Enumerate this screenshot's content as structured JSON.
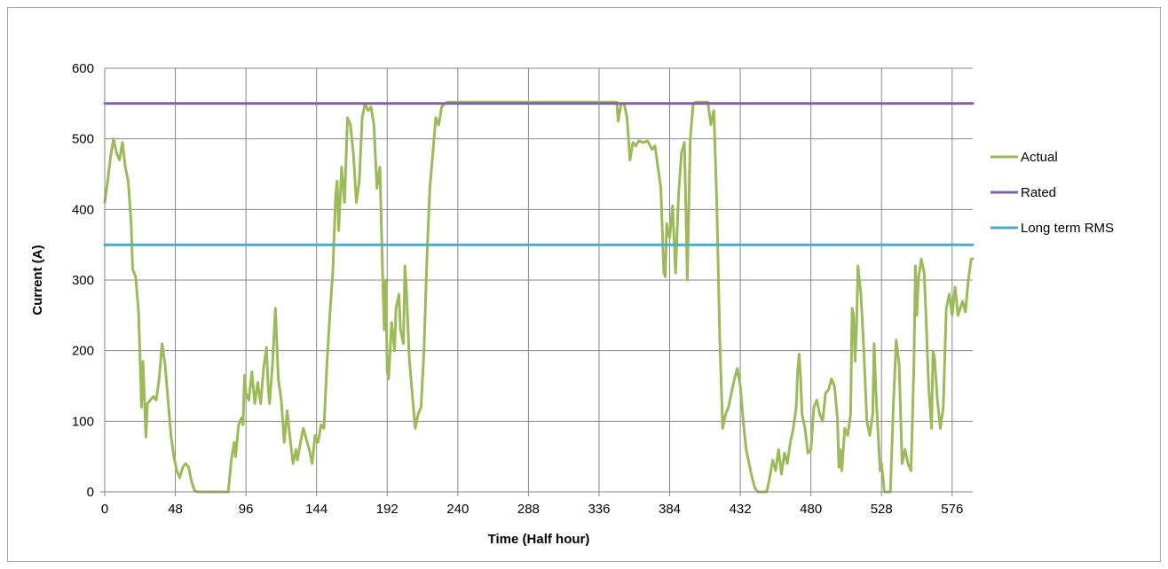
{
  "chart_data": {
    "type": "line",
    "xlabel": "Time (Half hour)",
    "ylabel": "Current (A)",
    "xlim": [
      0,
      590
    ],
    "ylim": [
      0,
      600
    ],
    "x_ticks": [
      0,
      48,
      96,
      144,
      192,
      240,
      288,
      336,
      384,
      432,
      480,
      528,
      576
    ],
    "y_ticks": [
      0,
      100,
      200,
      300,
      400,
      500,
      600
    ],
    "grid": true,
    "legend_position": "right",
    "series": [
      {
        "name": "Actual",
        "color": "#9bbb59",
        "points": [
          [
            0,
            410
          ],
          [
            2,
            440
          ],
          [
            4,
            475
          ],
          [
            6,
            500
          ],
          [
            8,
            480
          ],
          [
            10,
            470
          ],
          [
            12,
            495
          ],
          [
            14,
            460
          ],
          [
            16,
            440
          ],
          [
            18,
            380
          ],
          [
            19,
            315
          ],
          [
            21,
            305
          ],
          [
            23,
            255
          ],
          [
            24,
            190
          ],
          [
            25,
            120
          ],
          [
            26,
            185
          ],
          [
            27,
            130
          ],
          [
            28,
            78
          ],
          [
            29,
            125
          ],
          [
            31,
            130
          ],
          [
            33,
            135
          ],
          [
            35,
            130
          ],
          [
            37,
            160
          ],
          [
            39,
            210
          ],
          [
            41,
            180
          ],
          [
            43,
            130
          ],
          [
            45,
            80
          ],
          [
            47,
            50
          ],
          [
            49,
            30
          ],
          [
            51,
            20
          ],
          [
            53,
            35
          ],
          [
            55,
            40
          ],
          [
            57,
            35
          ],
          [
            59,
            15
          ],
          [
            61,
            2
          ],
          [
            63,
            0
          ],
          [
            70,
            0
          ],
          [
            78,
            0
          ],
          [
            84,
            0
          ],
          [
            86,
            45
          ],
          [
            88,
            70
          ],
          [
            89,
            50
          ],
          [
            91,
            95
          ],
          [
            93,
            105
          ],
          [
            94,
            95
          ],
          [
            95,
            165
          ],
          [
            96,
            140
          ],
          [
            98,
            130
          ],
          [
            100,
            170
          ],
          [
            102,
            125
          ],
          [
            104,
            155
          ],
          [
            106,
            125
          ],
          [
            108,
            175
          ],
          [
            110,
            205
          ],
          [
            111,
            150
          ],
          [
            112,
            125
          ],
          [
            114,
            180
          ],
          [
            116,
            260
          ],
          [
            118,
            160
          ],
          [
            120,
            130
          ],
          [
            121,
            100
          ],
          [
            122,
            70
          ],
          [
            124,
            115
          ],
          [
            126,
            75
          ],
          [
            128,
            40
          ],
          [
            130,
            60
          ],
          [
            131,
            45
          ],
          [
            133,
            70
          ],
          [
            135,
            90
          ],
          [
            137,
            75
          ],
          [
            139,
            60
          ],
          [
            141,
            40
          ],
          [
            143,
            80
          ],
          [
            145,
            70
          ],
          [
            147,
            95
          ],
          [
            149,
            90
          ],
          [
            151,
            180
          ],
          [
            153,
            250
          ],
          [
            155,
            310
          ],
          [
            157,
            420
          ],
          [
            158,
            440
          ],
          [
            159,
            370
          ],
          [
            161,
            460
          ],
          [
            163,
            410
          ],
          [
            165,
            530
          ],
          [
            167,
            520
          ],
          [
            169,
            480
          ],
          [
            171,
            410
          ],
          [
            173,
            440
          ],
          [
            175,
            530
          ],
          [
            177,
            550
          ],
          [
            179,
            540
          ],
          [
            181,
            545
          ],
          [
            183,
            520
          ],
          [
            185,
            430
          ],
          [
            187,
            460
          ],
          [
            189,
            300
          ],
          [
            190,
            230
          ],
          [
            191,
            300
          ],
          [
            192,
            170
          ],
          [
            193,
            160
          ],
          [
            195,
            240
          ],
          [
            197,
            200
          ],
          [
            198,
            260
          ],
          [
            200,
            280
          ],
          [
            201,
            230
          ],
          [
            203,
            210
          ],
          [
            204,
            320
          ],
          [
            205,
            290
          ],
          [
            207,
            190
          ],
          [
            209,
            140
          ],
          [
            211,
            90
          ],
          [
            213,
            110
          ],
          [
            215,
            120
          ],
          [
            217,
            200
          ],
          [
            219,
            330
          ],
          [
            221,
            430
          ],
          [
            223,
            480
          ],
          [
            225,
            530
          ],
          [
            227,
            520
          ],
          [
            229,
            545
          ],
          [
            231,
            550
          ],
          [
            233,
            552
          ],
          [
            240,
            552
          ],
          [
            260,
            552
          ],
          [
            288,
            552
          ],
          [
            320,
            552
          ],
          [
            345,
            552
          ],
          [
            348,
            552
          ],
          [
            349,
            525
          ],
          [
            351,
            550
          ],
          [
            353,
            550
          ],
          [
            355,
            530
          ],
          [
            357,
            470
          ],
          [
            359,
            495
          ],
          [
            361,
            490
          ],
          [
            363,
            497
          ],
          [
            366,
            495
          ],
          [
            369,
            497
          ],
          [
            372,
            485
          ],
          [
            374,
            490
          ],
          [
            376,
            460
          ],
          [
            378,
            430
          ],
          [
            380,
            310
          ],
          [
            381,
            305
          ],
          [
            382,
            380
          ],
          [
            384,
            360
          ],
          [
            386,
            405
          ],
          [
            388,
            310
          ],
          [
            390,
            420
          ],
          [
            392,
            480
          ],
          [
            394,
            495
          ],
          [
            395,
            400
          ],
          [
            396,
            300
          ],
          [
            398,
            500
          ],
          [
            400,
            550
          ],
          [
            402,
            552
          ],
          [
            406,
            552
          ],
          [
            410,
            552
          ],
          [
            412,
            520
          ],
          [
            414,
            540
          ],
          [
            416,
            410
          ],
          [
            418,
            220
          ],
          [
            420,
            90
          ],
          [
            422,
            110
          ],
          [
            424,
            120
          ],
          [
            426,
            140
          ],
          [
            428,
            160
          ],
          [
            430,
            175
          ],
          [
            432,
            150
          ],
          [
            434,
            100
          ],
          [
            436,
            60
          ],
          [
            438,
            40
          ],
          [
            440,
            20
          ],
          [
            442,
            5
          ],
          [
            444,
            0
          ],
          [
            450,
            0
          ],
          [
            452,
            20
          ],
          [
            454,
            45
          ],
          [
            456,
            30
          ],
          [
            458,
            60
          ],
          [
            460,
            25
          ],
          [
            462,
            55
          ],
          [
            464,
            40
          ],
          [
            466,
            70
          ],
          [
            468,
            90
          ],
          [
            470,
            120
          ],
          [
            471,
            170
          ],
          [
            472,
            195
          ],
          [
            473,
            160
          ],
          [
            474,
            110
          ],
          [
            476,
            90
          ],
          [
            478,
            55
          ],
          [
            480,
            60
          ],
          [
            482,
            120
          ],
          [
            484,
            130
          ],
          [
            486,
            110
          ],
          [
            488,
            100
          ],
          [
            490,
            140
          ],
          [
            492,
            145
          ],
          [
            494,
            160
          ],
          [
            496,
            150
          ],
          [
            498,
            105
          ],
          [
            499,
            35
          ],
          [
            500,
            60
          ],
          [
            501,
            30
          ],
          [
            503,
            90
          ],
          [
            505,
            80
          ],
          [
            507,
            110
          ],
          [
            508,
            260
          ],
          [
            509,
            250
          ],
          [
            510,
            185
          ],
          [
            511,
            230
          ],
          [
            512,
            320
          ],
          [
            514,
            280
          ],
          [
            516,
            200
          ],
          [
            518,
            100
          ],
          [
            520,
            80
          ],
          [
            522,
            110
          ],
          [
            523,
            210
          ],
          [
            524,
            150
          ],
          [
            526,
            70
          ],
          [
            527,
            30
          ],
          [
            528,
            40
          ],
          [
            530,
            0
          ],
          [
            534,
            0
          ],
          [
            536,
            120
          ],
          [
            538,
            215
          ],
          [
            540,
            180
          ],
          [
            542,
            40
          ],
          [
            544,
            60
          ],
          [
            546,
            40
          ],
          [
            548,
            30
          ],
          [
            549,
            100
          ],
          [
            550,
            180
          ],
          [
            551,
            320
          ],
          [
            552,
            250
          ],
          [
            553,
            300
          ],
          [
            555,
            330
          ],
          [
            557,
            310
          ],
          [
            558,
            260
          ],
          [
            560,
            150
          ],
          [
            562,
            90
          ],
          [
            563,
            200
          ],
          [
            564,
            190
          ],
          [
            566,
            130
          ],
          [
            568,
            90
          ],
          [
            570,
            120
          ],
          [
            572,
            260
          ],
          [
            574,
            280
          ],
          [
            576,
            250
          ],
          [
            578,
            290
          ],
          [
            580,
            250
          ],
          [
            583,
            270
          ],
          [
            585,
            255
          ],
          [
            587,
            300
          ],
          [
            589,
            330
          ],
          [
            590,
            330
          ]
        ]
      },
      {
        "name": "Rated",
        "color": "#8064a2",
        "values": [
          550,
          550
        ],
        "x": [
          0,
          590
        ]
      },
      {
        "name": "Long term RMS",
        "color": "#4bacc6",
        "values": [
          350,
          350
        ],
        "x": [
          0,
          590
        ]
      }
    ]
  }
}
